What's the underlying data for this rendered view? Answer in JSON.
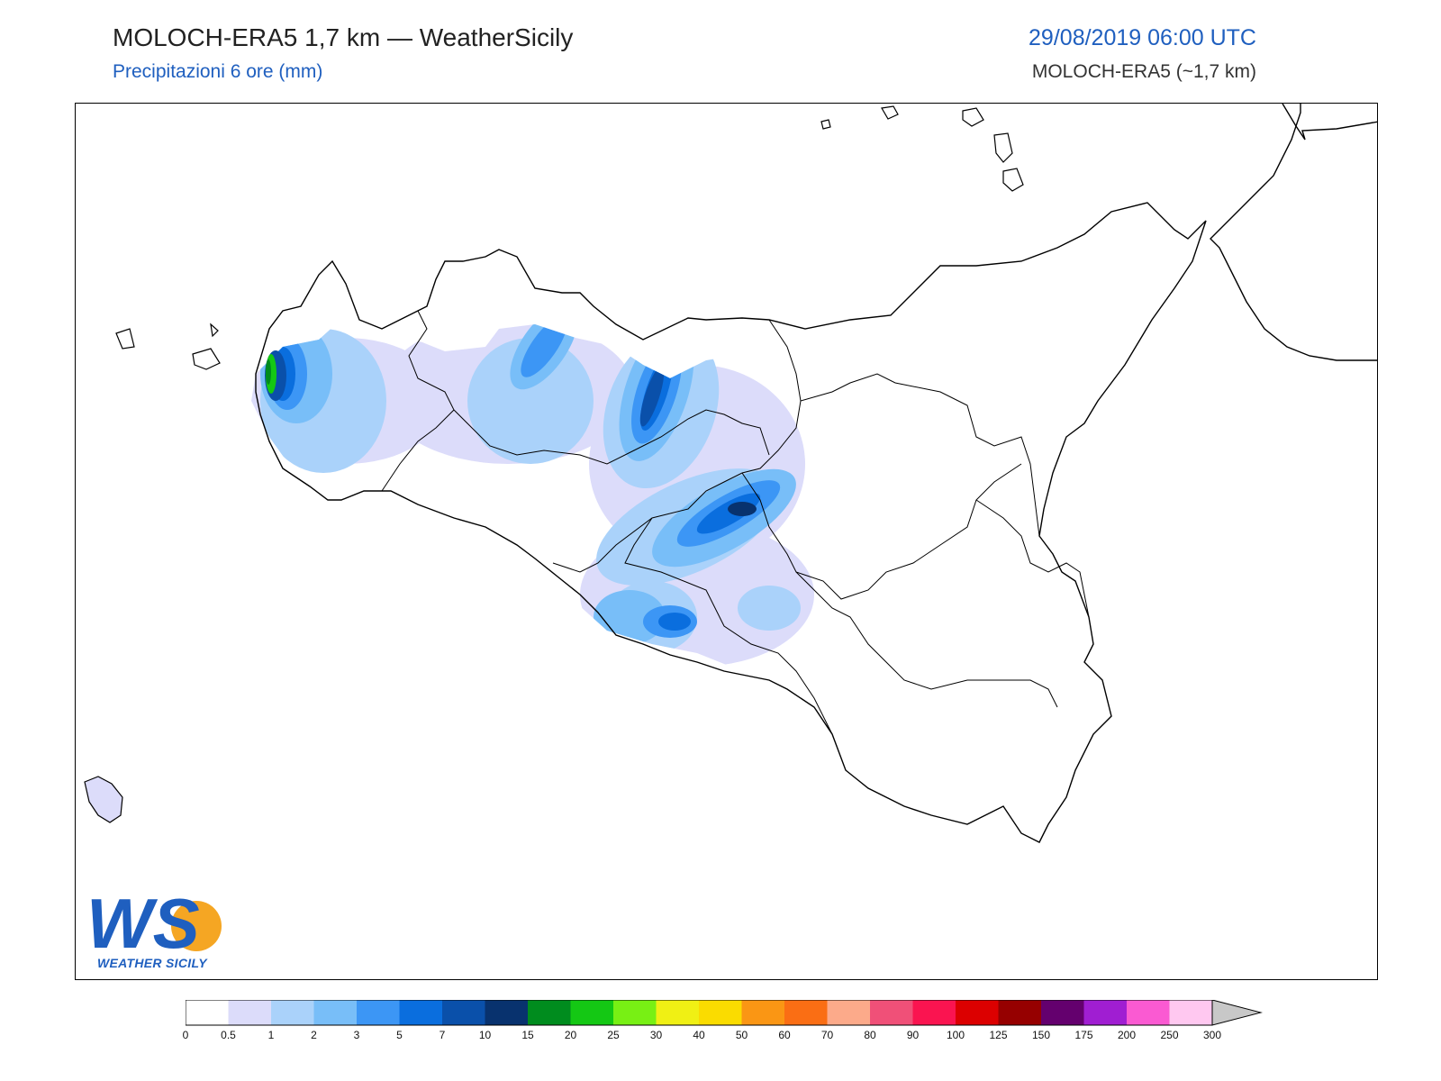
{
  "header": {
    "title": "MOLOCH-ERA5 1,7 km — WeatherSicily",
    "subtitle": "Precipitazioni 6 ore (mm)",
    "datetime": "29/08/2019 06:00 UTC",
    "model": "MOLOCH-ERA5 (~1,7 km)"
  },
  "logo": {
    "letters": "WS",
    "text": "WEATHER SICILY"
  },
  "legend": {
    "ticks": [
      "0",
      "0.5",
      "1",
      "2",
      "3",
      "5",
      "7",
      "10",
      "15",
      "20",
      "25",
      "30",
      "40",
      "50",
      "60",
      "70",
      "80",
      "90",
      "100",
      "125",
      "150",
      "175",
      "200",
      "250",
      "300"
    ],
    "colors": [
      "#ffffff",
      "#dcdcfa",
      "#aad2fa",
      "#78bef8",
      "#3c96f5",
      "#0a6ede",
      "#0a50aa",
      "#08326e",
      "#008c1e",
      "#14c814",
      "#78f014",
      "#f0f014",
      "#fadc00",
      "#fa9614",
      "#fa6e14",
      "#fcaa8a",
      "#f05078",
      "#fa1450",
      "#dc0000",
      "#960000",
      "#64006e",
      "#a01ed2",
      "#fa5ad2",
      "#ffc8f0"
    ],
    "over_color": "#c8c8c8"
  },
  "map": {
    "region": "Sicilia",
    "precip_cells": [
      {
        "lon": 12.55,
        "lat": 38.05,
        "mm": 20
      },
      {
        "lon": 12.6,
        "lat": 37.95,
        "mm": 10
      },
      {
        "lon": 13.65,
        "lat": 37.9,
        "mm": 10
      },
      {
        "lon": 13.95,
        "lat": 37.45,
        "mm": 10
      },
      {
        "lon": 14.05,
        "lat": 37.4,
        "mm": 7
      },
      {
        "lon": 13.6,
        "lat": 37.2,
        "mm": 7
      }
    ]
  }
}
